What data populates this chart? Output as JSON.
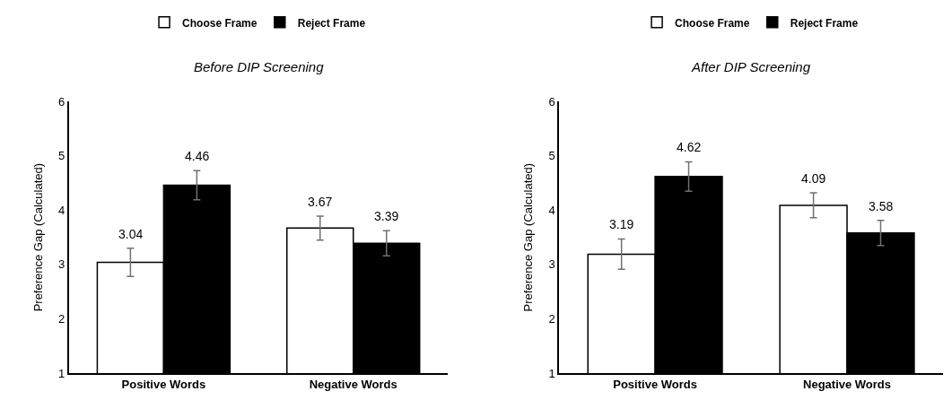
{
  "chart_data": [
    {
      "type": "bar",
      "title": "Before DIP Screening",
      "ylabel": "Preference Gap (Calculated)",
      "categories": [
        "Positive Words",
        "Negative Words"
      ],
      "series": [
        {
          "name": "Choose Frame",
          "color": "#ffffff",
          "values": [
            3.04,
            3.67
          ],
          "errors": [
            0.26,
            0.22
          ]
        },
        {
          "name": "Reject Frame",
          "color": "#000000",
          "values": [
            4.46,
            3.39
          ],
          "errors": [
            0.27,
            0.23
          ]
        }
      ],
      "ylim": [
        1,
        6
      ],
      "yticks": [
        1,
        2,
        3,
        4,
        5,
        6
      ],
      "grid": false,
      "legend": "top",
      "data_labels": true
    },
    {
      "type": "bar",
      "title": "After DIP Screening",
      "ylabel": "Preference Gap (Calculated)",
      "categories": [
        "Positive Words",
        "Negative Words"
      ],
      "series": [
        {
          "name": "Choose Frame",
          "color": "#ffffff",
          "values": [
            3.19,
            4.09
          ],
          "errors": [
            0.28,
            0.23
          ]
        },
        {
          "name": "Reject Frame",
          "color": "#000000",
          "values": [
            4.62,
            3.58
          ],
          "errors": [
            0.27,
            0.23
          ]
        }
      ],
      "ylim": [
        1,
        6
      ],
      "yticks": [
        1,
        2,
        3,
        4,
        5,
        6
      ],
      "grid": false,
      "legend": "top",
      "data_labels": true
    }
  ]
}
